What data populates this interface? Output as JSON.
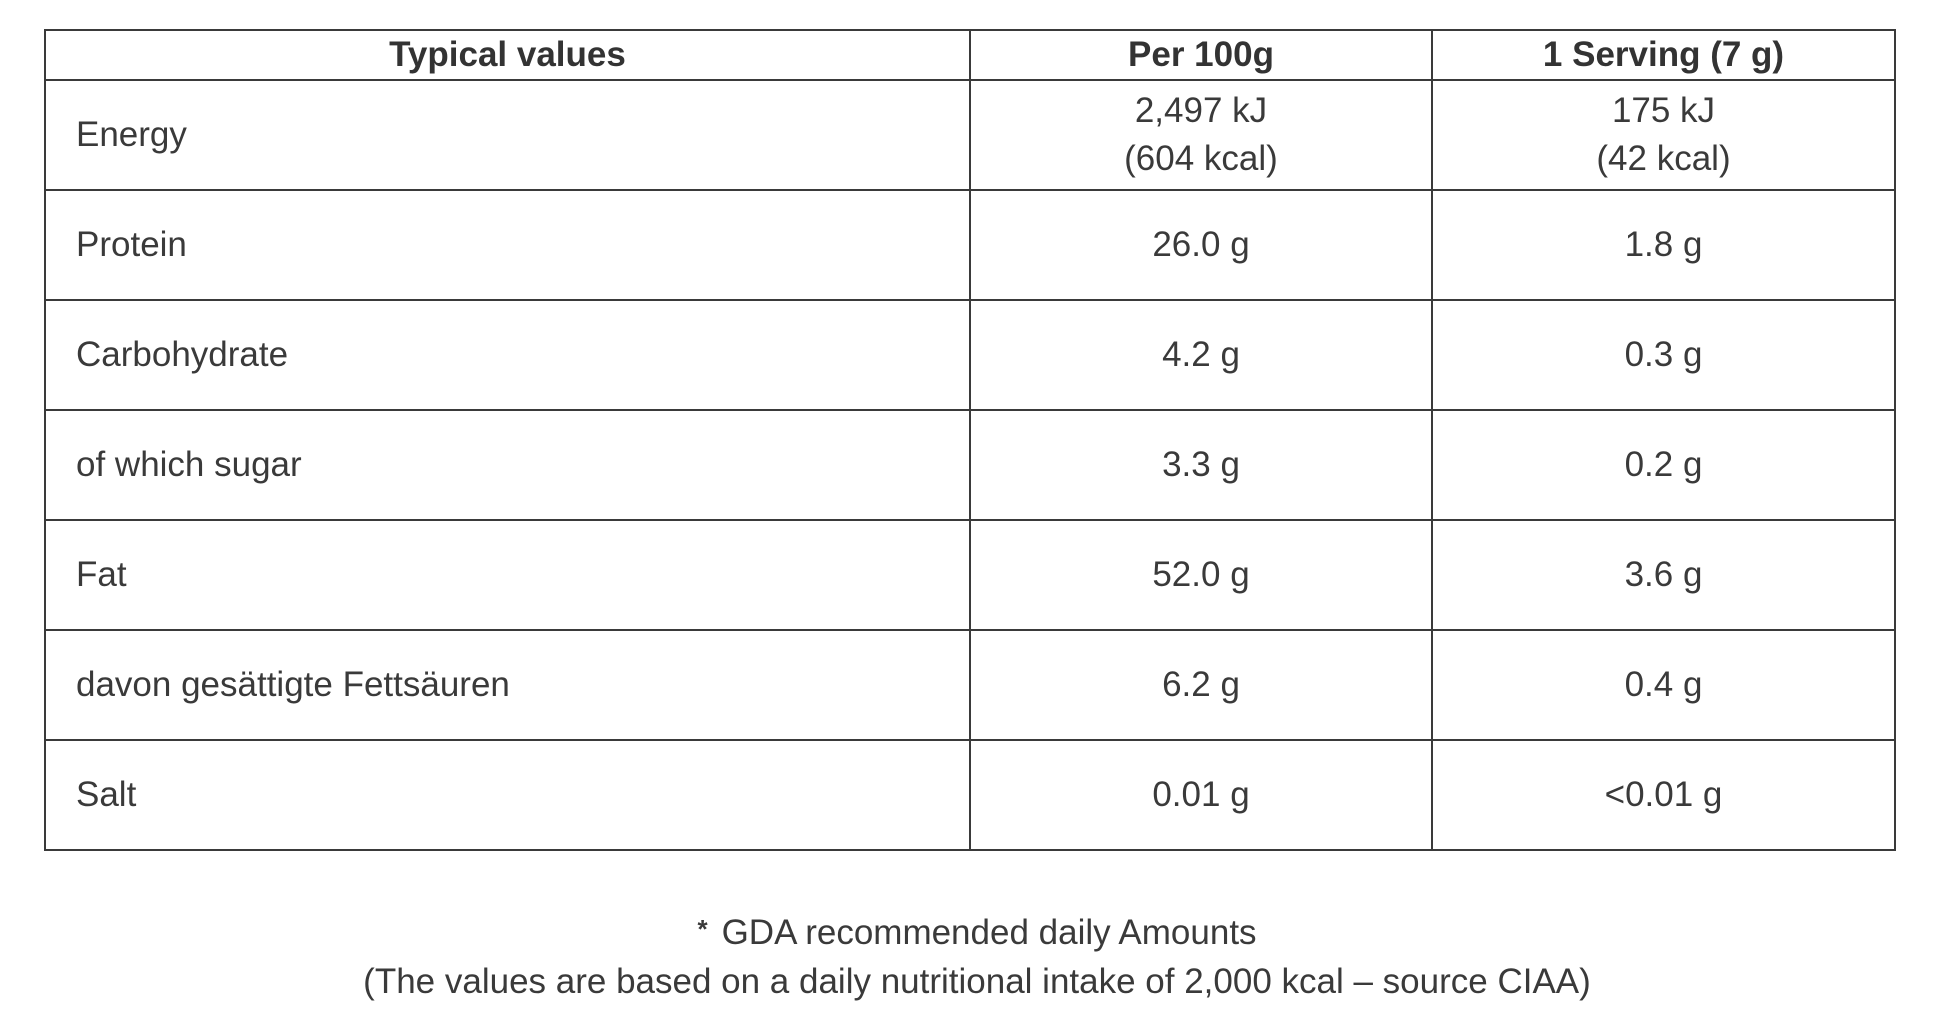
{
  "table": {
    "headers": {
      "label": "Typical values",
      "per100": "Per 100g",
      "serving": "1 Serving (7 g)"
    },
    "rows": [
      {
        "label": "Energy",
        "per100": [
          "2,497 kJ",
          "(604 kcal)"
        ],
        "serving": [
          "175 kJ",
          "(42 kcal)"
        ]
      },
      {
        "label": "Protein",
        "per100": [
          "26.0 g"
        ],
        "serving": [
          "1.8 g"
        ]
      },
      {
        "label": "Carbohydrate",
        "per100": [
          "4.2 g"
        ],
        "serving": [
          "0.3 g"
        ]
      },
      {
        "label": "of which sugar",
        "per100": [
          "3.3 g"
        ],
        "serving": [
          "0.2 g"
        ]
      },
      {
        "label": "Fat",
        "per100": [
          "52.0 g"
        ],
        "serving": [
          "3.6 g"
        ]
      },
      {
        "label": "davon gesättigte Fettsäuren",
        "per100": [
          "6.2 g"
        ],
        "serving": [
          "0.4 g"
        ]
      },
      {
        "label": "Salt",
        "per100": [
          "0.01 g"
        ],
        "serving": [
          "<0.01 g"
        ]
      }
    ]
  },
  "footnote": {
    "marker": "*",
    "line1": "GDA recommended daily Amounts",
    "line2": "(The values are based on a daily nutritional intake of 2,000 kcal – source CIAA)"
  }
}
